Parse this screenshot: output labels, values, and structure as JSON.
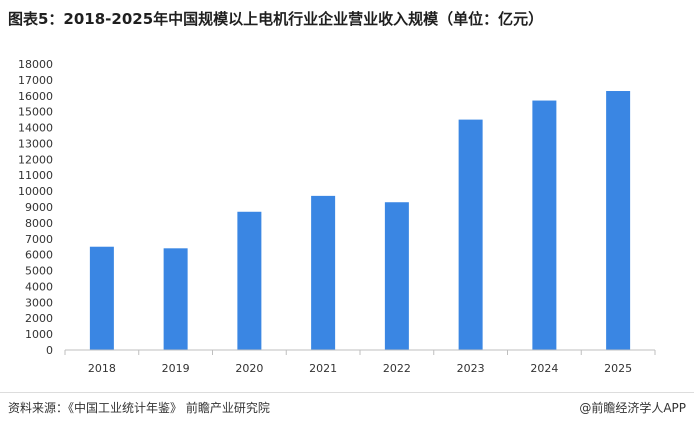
{
  "title": "图表5：2018-2025年中国规模以上电机行业企业营业收入规模（单位：亿元）",
  "source": "资料来源：《中国工业统计年鉴》 前瞻产业研究院",
  "brand": "@前瞻经济学人APP",
  "colors": {
    "bar": "#3a86e3",
    "axis": "#bfbfbf",
    "text": "#333333"
  },
  "chart_data": {
    "type": "bar",
    "categories": [
      "2018",
      "2019",
      "2020",
      "2021",
      "2022",
      "2023",
      "2024",
      "2025"
    ],
    "values": [
      6500,
      6400,
      8700,
      9700,
      9300,
      14500,
      15700,
      16300
    ],
    "ylim": [
      0,
      18000
    ],
    "yticks": [
      0,
      1000,
      2000,
      3000,
      4000,
      5000,
      6000,
      7000,
      8000,
      9000,
      10000,
      11000,
      12000,
      13000,
      14000,
      15000,
      16000,
      17000,
      18000
    ],
    "grid": false,
    "legend": "none"
  }
}
